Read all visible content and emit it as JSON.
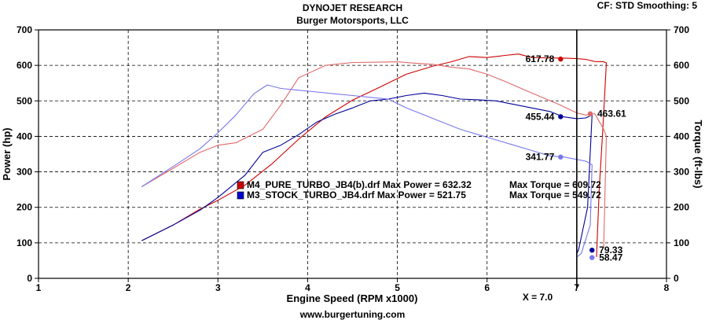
{
  "header": {
    "title": "DYNOJET RESEARCH",
    "subtitle": "Burger Motorsports, LLC",
    "settings": "CF: STD  Smoothing: 5"
  },
  "footer": {
    "url": "www.burgertuning.com"
  },
  "chart_data": {
    "type": "line",
    "xlabel": "Engine Speed (RPM x1000)",
    "ylabel_left": "Power (hp)",
    "ylabel_right": "Torque (ft-lbs)",
    "xlim": [
      1,
      8
    ],
    "ylim": [
      0,
      700
    ],
    "x_ticks": [
      "1",
      "2",
      "3",
      "4",
      "5",
      "6",
      "7",
      "8"
    ],
    "y_ticks": [
      "0",
      "100",
      "200",
      "300",
      "400",
      "500",
      "600",
      "700"
    ],
    "grid": true,
    "cursor": {
      "x": 7.0,
      "label": "X = 7.0"
    },
    "legend": [
      {
        "file": "M4_PURE_TURBO_JB4(b).drf",
        "power_label": "Max Power = 632.32",
        "torque_label": "Max Torque = 609.72",
        "color": "#cc0000"
      },
      {
        "file": "M3_STOCK_TURBO_JB4.drf",
        "power_label": "Max Power = 521.75",
        "torque_label": "Max Torque = 549.72",
        "color": "#0000cc"
      }
    ],
    "series": [
      {
        "name": "M4_PURE_TURBO_JB4(b).drf",
        "metric": "power",
        "color": "#cc0000",
        "x": [
          2.15,
          2.5,
          2.8,
          3.0,
          3.3,
          3.6,
          3.9,
          4.2,
          4.5,
          4.8,
          5.1,
          5.4,
          5.6,
          5.8,
          6.0,
          6.2,
          6.35,
          6.5,
          6.7,
          6.9,
          7.0,
          7.1,
          7.2,
          7.3,
          7.33,
          7.29,
          7.25,
          7.22
        ],
        "y": [
          106,
          150,
          195,
          220,
          262,
          322,
          392,
          455,
          502,
          538,
          575,
          598,
          610,
          625,
          622,
          628,
          632,
          622,
          621,
          620,
          619,
          617,
          611,
          610,
          607,
          420,
          250,
          60
        ]
      },
      {
        "name": "M4_PURE_TURBO_JB4(b).drf",
        "metric": "torque",
        "color": "#e06868",
        "x": [
          2.15,
          2.5,
          2.8,
          3.0,
          3.2,
          3.5,
          3.7,
          3.9,
          4.2,
          4.5,
          4.8,
          5.0,
          5.2,
          5.4,
          5.6,
          5.8,
          6.0,
          6.2,
          6.5,
          6.8,
          7.0,
          7.1,
          7.2,
          7.3,
          7.33,
          7.3
        ],
        "y": [
          258,
          310,
          355,
          375,
          382,
          420,
          488,
          565,
          600,
          608,
          609,
          610,
          606,
          603,
          595,
          590,
          575,
          555,
          522,
          490,
          466,
          460,
          464,
          420,
          400,
          90
        ]
      },
      {
        "name": "M3_STOCK_TURBO_JB4.drf",
        "metric": "power",
        "color": "#000099",
        "x": [
          2.15,
          2.5,
          2.8,
          3.0,
          3.3,
          3.5,
          3.7,
          3.9,
          4.1,
          4.3,
          4.5,
          4.7,
          4.9,
          5.1,
          5.3,
          5.5,
          5.7,
          5.9,
          6.1,
          6.3,
          6.5,
          6.7,
          6.85,
          7.0,
          7.1,
          7.17,
          7.12,
          7.02,
          7.0
        ],
        "y": [
          106,
          150,
          192,
          228,
          290,
          355,
          375,
          405,
          440,
          462,
          480,
          500,
          505,
          515,
          522,
          515,
          505,
          503,
          500,
          490,
          480,
          470,
          455,
          450,
          452,
          460,
          200,
          80,
          70
        ]
      },
      {
        "name": "M3_STOCK_TURBO_JB4.drf",
        "metric": "torque",
        "color": "#7777ee",
        "x": [
          2.15,
          2.5,
          2.8,
          3.0,
          3.2,
          3.4,
          3.55,
          3.7,
          3.9,
          4.1,
          4.3,
          4.5,
          4.7,
          4.9,
          5.1,
          5.3,
          5.5,
          5.7,
          5.9,
          6.1,
          6.3,
          6.5,
          6.7,
          6.85,
          7.0,
          7.1,
          7.17,
          7.15,
          7.05,
          7.0
        ],
        "y": [
          258,
          315,
          365,
          410,
          460,
          520,
          545,
          535,
          530,
          525,
          520,
          515,
          510,
          505,
          480,
          460,
          440,
          420,
          405,
          390,
          375,
          360,
          345,
          342,
          335,
          330,
          320,
          150,
          70,
          60
        ]
      }
    ],
    "cursor_labels": [
      {
        "text": "617.78",
        "x": 6.82,
        "y": 617.78,
        "color": "#cc0000",
        "side": "left"
      },
      {
        "text": "463.61",
        "x": 7.15,
        "y": 463.61,
        "color": "#e06868",
        "side": "right"
      },
      {
        "text": "455.44",
        "x": 6.82,
        "y": 455.44,
        "color": "#000099",
        "side": "left"
      },
      {
        "text": "341.77",
        "x": 6.82,
        "y": 341.77,
        "color": "#7777ee",
        "side": "left"
      },
      {
        "text": "79.33",
        "x": 7.17,
        "y": 79.33,
        "color": "#000099",
        "side": "right"
      },
      {
        "text": "58.47",
        "x": 7.17,
        "y": 58.47,
        "color": "#7777ee",
        "side": "right"
      }
    ]
  }
}
